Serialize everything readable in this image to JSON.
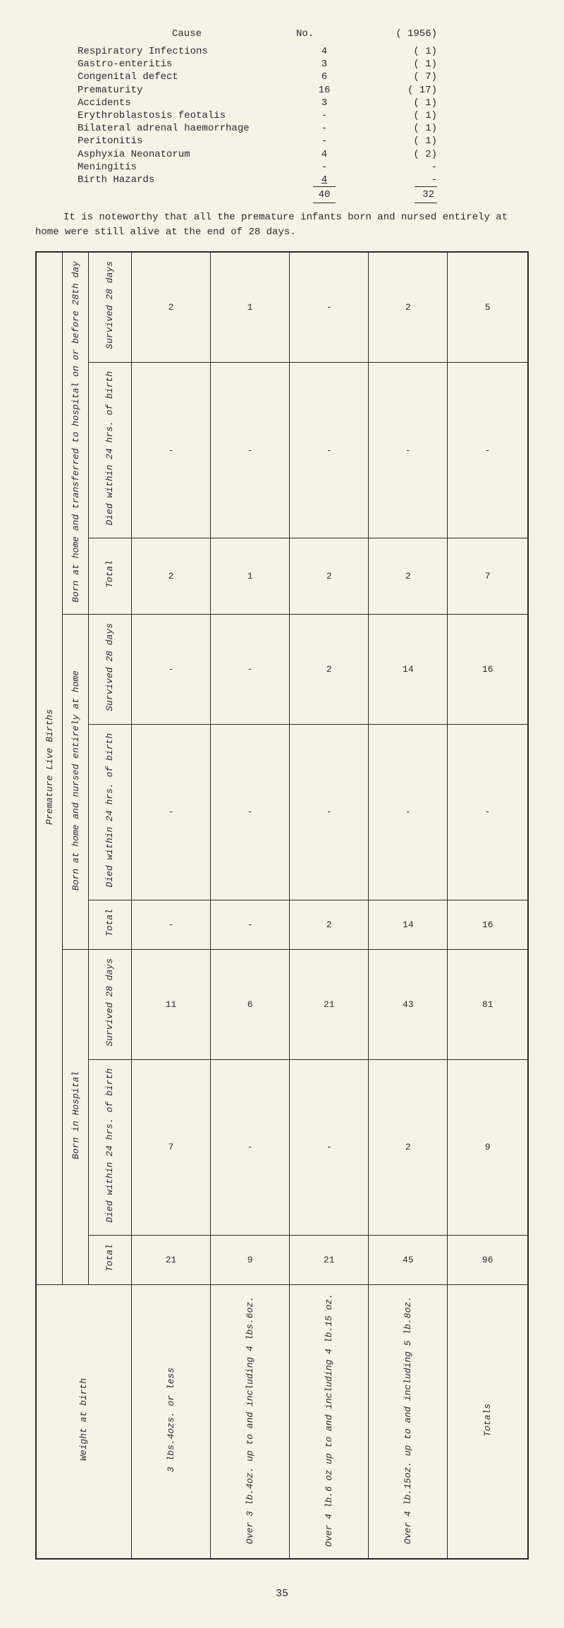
{
  "causeTable": {
    "headers": {
      "cause": "Cause",
      "no": "No.",
      "year": "( 1956)"
    },
    "rows": [
      {
        "cause": "Respiratory Infections",
        "no": "4",
        "year": "( 1)"
      },
      {
        "cause": "Gastro-enteritis",
        "no": "3",
        "year": "( 1)"
      },
      {
        "cause": "Congenital defect",
        "no": "6",
        "year": "( 7)"
      },
      {
        "cause": "Prematurity",
        "no": "16",
        "year": "( 17)"
      },
      {
        "cause": "Accidents",
        "no": "3",
        "year": "( 1)"
      },
      {
        "cause": "Erythroblastosis feotalis",
        "no": "-",
        "year": "( 1)"
      },
      {
        "cause": "Bilateral adrenal haemorrhage",
        "no": "-",
        "year": "( 1)"
      },
      {
        "cause": "Peritonitis",
        "no": "-",
        "year": "( 1)"
      },
      {
        "cause": "Asphyxia Neonatorum",
        "no": "4",
        "year": "( 2)"
      },
      {
        "cause": "Meningitis",
        "no": "-",
        "year": "-"
      },
      {
        "cause": "Birth Hazards",
        "no": "4",
        "year": "-"
      }
    ],
    "totals": {
      "no": "40",
      "year": "32"
    }
  },
  "paragraph": "It is noteworthy that all the premature infants born and nursed entirely at home were still alive at the end of 28 days.",
  "mainTable": {
    "outerLabel": "Premature Live Births",
    "groups": [
      {
        "label": "Born in Hospital"
      },
      {
        "label": "Born at home and nursed entirely at home"
      },
      {
        "label": "Born at home and transferred to hospital on or before 28th day"
      }
    ],
    "subcols": {
      "total": "Total",
      "died": "Died within 24 hrs. of birth",
      "survived": "Survived 28 days"
    },
    "weightHeader": "Weight at birth",
    "weights": [
      "3 lbs.4ozs. or less",
      "Over 3 lb.4oz. up to and including 4 lbs.6oz.",
      "Over 4 lb.6 oz up to and including 4 lb.15 oz.",
      "Over 4 lb.15oz. up to and including 5 lb.8oz.",
      "Totals"
    ],
    "data": {
      "hosp": {
        "total": [
          "21",
          "9",
          "21",
          "45",
          "96"
        ],
        "died": [
          "7",
          "-",
          "-",
          "2",
          "9"
        ],
        "survived": [
          "11",
          "6",
          "21",
          "43",
          "81"
        ]
      },
      "home": {
        "total": [
          "-",
          "-",
          "2",
          "14",
          "16"
        ],
        "died": [
          "-",
          "-",
          "-",
          "-",
          "-"
        ],
        "survived": [
          "-",
          "-",
          "2",
          "14",
          "16"
        ]
      },
      "trans": {
        "total": [
          "2",
          "1",
          "2",
          "2",
          "7"
        ],
        "died": [
          "-",
          "-",
          "-",
          "-",
          "-"
        ],
        "survived": [
          "2",
          "1",
          "-",
          "2",
          "5"
        ]
      }
    }
  },
  "pageNumber": "35"
}
